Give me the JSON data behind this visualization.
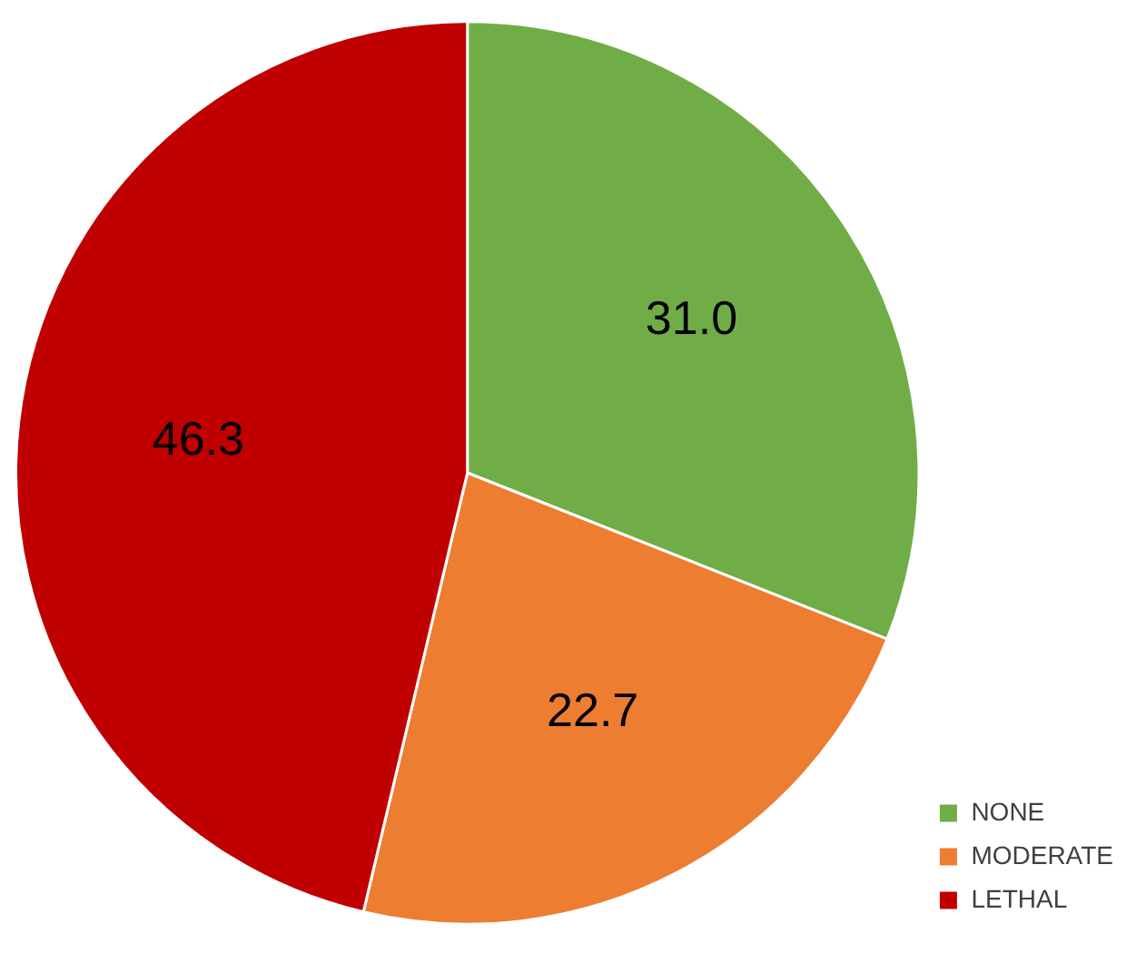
{
  "chart_data": {
    "type": "pie",
    "categories": [
      "NONE",
      "MODERATE",
      "LETHAL"
    ],
    "values": [
      31.0,
      22.7,
      46.3
    ],
    "colors": [
      "#70ad47",
      "#ed7d31",
      "#c00000"
    ],
    "value_labels": [
      "31.0",
      "22.7",
      "46.3"
    ],
    "legend": "bottom right"
  }
}
